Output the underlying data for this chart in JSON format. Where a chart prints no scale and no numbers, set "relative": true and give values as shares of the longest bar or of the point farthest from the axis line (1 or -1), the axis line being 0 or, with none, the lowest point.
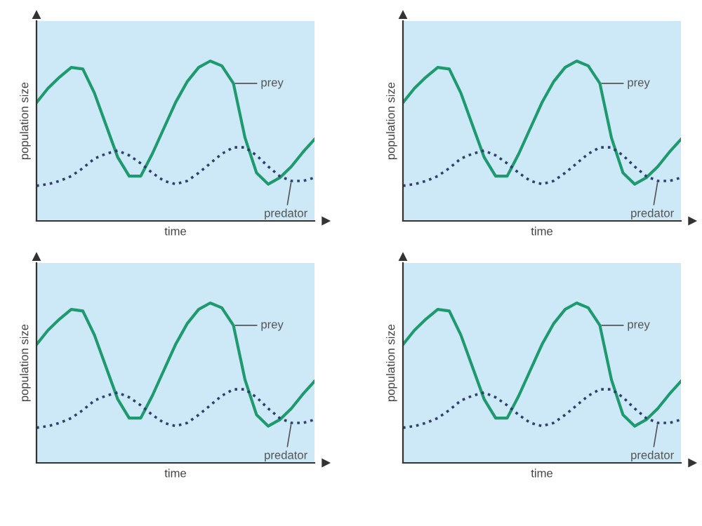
{
  "chart_data": [
    {
      "type": "line",
      "relative": true,
      "xlabel": "time",
      "ylabel": "population size",
      "legend": false,
      "categories": [
        null,
        null,
        null,
        null,
        null,
        null,
        null,
        null,
        null,
        null,
        null,
        null,
        null,
        null,
        null,
        null,
        null,
        null,
        null,
        null,
        null,
        null,
        null,
        null,
        null
      ],
      "series": [
        {
          "name": "prey",
          "color": "#1f9a6e",
          "line_style": "solid",
          "values": [
            0.74,
            0.83,
            0.9,
            0.96,
            0.95,
            0.8,
            0.6,
            0.4,
            0.28,
            0.28,
            0.42,
            0.58,
            0.74,
            0.87,
            0.96,
            1.0,
            0.97,
            0.86,
            0.52,
            0.3,
            0.23,
            0.27,
            0.34,
            0.43,
            0.51
          ]
        },
        {
          "name": "predator",
          "color": "#2e3f6e",
          "line_style": "dotted",
          "values": [
            0.22,
            0.23,
            0.25,
            0.28,
            0.33,
            0.39,
            0.42,
            0.44,
            0.41,
            0.36,
            0.3,
            0.25,
            0.23,
            0.25,
            0.3,
            0.36,
            0.42,
            0.46,
            0.46,
            0.41,
            0.34,
            0.28,
            0.25,
            0.25,
            0.27
          ]
        }
      ]
    },
    {
      "type": "line",
      "relative": true,
      "xlabel": "time",
      "ylabel": "population size",
      "legend": false,
      "categories": [
        null,
        null,
        null,
        null,
        null,
        null,
        null,
        null,
        null,
        null,
        null,
        null,
        null,
        null,
        null,
        null,
        null,
        null,
        null,
        null,
        null,
        null,
        null,
        null,
        null
      ],
      "series": [
        {
          "name": "prey",
          "color": "#1f9a6e",
          "line_style": "solid",
          "values": [
            0.74,
            0.83,
            0.9,
            0.96,
            0.95,
            0.8,
            0.6,
            0.4,
            0.28,
            0.28,
            0.42,
            0.58,
            0.74,
            0.87,
            0.96,
            1.0,
            0.97,
            0.86,
            0.52,
            0.3,
            0.23,
            0.27,
            0.34,
            0.43,
            0.51
          ]
        },
        {
          "name": "predator",
          "color": "#2e3f6e",
          "line_style": "dotted",
          "values": [
            0.22,
            0.23,
            0.25,
            0.28,
            0.33,
            0.39,
            0.42,
            0.44,
            0.41,
            0.36,
            0.3,
            0.25,
            0.23,
            0.25,
            0.3,
            0.36,
            0.42,
            0.46,
            0.46,
            0.41,
            0.34,
            0.28,
            0.25,
            0.25,
            0.27
          ]
        }
      ]
    },
    {
      "type": "line",
      "relative": true,
      "xlabel": "time",
      "ylabel": "population size",
      "legend": false,
      "categories": [
        null,
        null,
        null,
        null,
        null,
        null,
        null,
        null,
        null,
        null,
        null,
        null,
        null,
        null,
        null,
        null,
        null,
        null,
        null,
        null,
        null,
        null,
        null,
        null,
        null
      ],
      "series": [
        {
          "name": "prey",
          "color": "#1f9a6e",
          "line_style": "solid",
          "values": [
            0.74,
            0.83,
            0.9,
            0.96,
            0.95,
            0.8,
            0.6,
            0.4,
            0.28,
            0.28,
            0.42,
            0.58,
            0.74,
            0.87,
            0.96,
            1.0,
            0.97,
            0.86,
            0.52,
            0.3,
            0.23,
            0.27,
            0.34,
            0.43,
            0.51
          ]
        },
        {
          "name": "predator",
          "color": "#2e3f6e",
          "line_style": "dotted",
          "values": [
            0.22,
            0.23,
            0.25,
            0.28,
            0.33,
            0.39,
            0.42,
            0.44,
            0.41,
            0.36,
            0.3,
            0.25,
            0.23,
            0.25,
            0.3,
            0.36,
            0.42,
            0.46,
            0.46,
            0.41,
            0.34,
            0.28,
            0.25,
            0.25,
            0.27
          ]
        }
      ]
    },
    {
      "type": "line",
      "relative": true,
      "xlabel": "time",
      "ylabel": "population size",
      "legend": false,
      "categories": [
        null,
        null,
        null,
        null,
        null,
        null,
        null,
        null,
        null,
        null,
        null,
        null,
        null,
        null,
        null,
        null,
        null,
        null,
        null,
        null,
        null,
        null,
        null,
        null,
        null
      ],
      "series": [
        {
          "name": "prey",
          "color": "#1f9a6e",
          "line_style": "solid",
          "values": [
            0.74,
            0.83,
            0.9,
            0.96,
            0.95,
            0.8,
            0.6,
            0.4,
            0.28,
            0.28,
            0.42,
            0.58,
            0.74,
            0.87,
            0.96,
            1.0,
            0.97,
            0.86,
            0.52,
            0.3,
            0.23,
            0.27,
            0.34,
            0.43,
            0.51
          ]
        },
        {
          "name": "predator",
          "color": "#2e3f6e",
          "line_style": "dotted",
          "values": [
            0.22,
            0.23,
            0.25,
            0.28,
            0.33,
            0.39,
            0.42,
            0.44,
            0.41,
            0.36,
            0.3,
            0.25,
            0.23,
            0.25,
            0.3,
            0.36,
            0.42,
            0.46,
            0.46,
            0.41,
            0.34,
            0.28,
            0.25,
            0.25,
            0.27
          ]
        }
      ]
    }
  ]
}
